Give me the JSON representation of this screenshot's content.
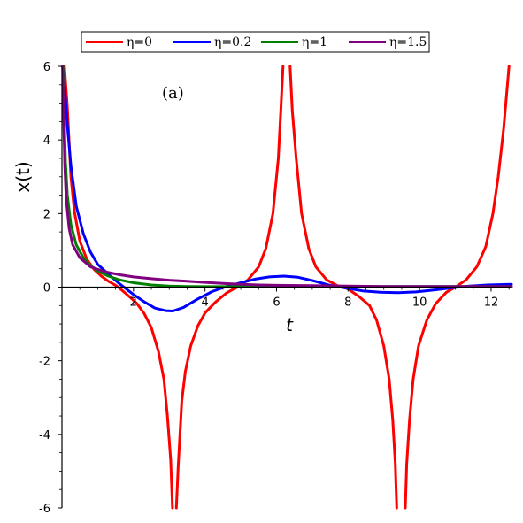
{
  "chart_data": {
    "type": "line",
    "title": "",
    "xlabel": "t",
    "ylabel": "x(t)",
    "xlim": [
      0,
      12.57
    ],
    "ylim": [
      -6,
      6
    ],
    "xticks": [
      2,
      4,
      6,
      8,
      10,
      12
    ],
    "yticks": [
      -6,
      -4,
      -2,
      0,
      2,
      4,
      6
    ],
    "grid": false,
    "legend_position": "top",
    "annotation": "(a)",
    "series": [
      {
        "name": "η=0",
        "color": "#ff0000",
        "segments": [
          [
            [
              0.07,
              6.0
            ],
            [
              0.15,
              4.9
            ],
            [
              0.25,
              3.0
            ],
            [
              0.35,
              2.05
            ],
            [
              0.5,
              1.25
            ],
            [
              0.7,
              0.75
            ],
            [
              0.9,
              0.48
            ],
            [
              1.1,
              0.3
            ],
            [
              1.3,
              0.16
            ],
            [
              1.5,
              0.05
            ],
            [
              1.57,
              0
            ],
            [
              1.7,
              -0.1
            ],
            [
              1.9,
              -0.27
            ],
            [
              2.1,
              -0.45
            ],
            [
              2.3,
              -0.72
            ],
            [
              2.5,
              -1.1
            ],
            [
              2.7,
              -1.75
            ],
            [
              2.85,
              -2.5
            ],
            [
              2.95,
              -3.5
            ],
            [
              3.04,
              -4.7
            ],
            [
              3.09,
              -6.0
            ]
          ],
          [
            [
              3.2,
              -6.0
            ],
            [
              3.25,
              -4.9
            ],
            [
              3.35,
              -3.1
            ],
            [
              3.45,
              -2.3
            ],
            [
              3.6,
              -1.6
            ],
            [
              3.8,
              -1.05
            ],
            [
              4.0,
              -0.7
            ],
            [
              4.3,
              -0.4
            ],
            [
              4.6,
              -0.16
            ],
            [
              4.8,
              -0.05
            ],
            [
              4.91,
              0
            ],
            [
              5.2,
              0.2
            ],
            [
              5.5,
              0.55
            ],
            [
              5.7,
              1.05
            ],
            [
              5.9,
              2.0
            ],
            [
              6.05,
              3.5
            ],
            [
              6.12,
              4.8
            ],
            [
              6.18,
              6.0
            ]
          ],
          [
            [
              6.38,
              6.0
            ],
            [
              6.44,
              4.8
            ],
            [
              6.55,
              3.5
            ],
            [
              6.7,
              2.0
            ],
            [
              6.9,
              1.05
            ],
            [
              7.1,
              0.55
            ],
            [
              7.4,
              0.2
            ],
            [
              7.7,
              0.04
            ],
            [
              7.85,
              0
            ],
            [
              8.0,
              -0.05
            ],
            [
              8.3,
              -0.25
            ],
            [
              8.6,
              -0.5
            ],
            [
              8.8,
              -0.9
            ],
            [
              9.0,
              -1.6
            ],
            [
              9.15,
              -2.5
            ],
            [
              9.25,
              -3.6
            ],
            [
              9.32,
              -4.8
            ],
            [
              9.36,
              -6.0
            ]
          ],
          [
            [
              9.6,
              -6.0
            ],
            [
              9.64,
              -4.8
            ],
            [
              9.72,
              -3.6
            ],
            [
              9.82,
              -2.5
            ],
            [
              9.97,
              -1.6
            ],
            [
              10.2,
              -0.9
            ],
            [
              10.45,
              -0.45
            ],
            [
              10.75,
              -0.14
            ],
            [
              11.0,
              0
            ],
            [
              11.3,
              0.2
            ],
            [
              11.6,
              0.55
            ],
            [
              11.85,
              1.1
            ],
            [
              12.05,
              2.0
            ],
            [
              12.2,
              3.0
            ],
            [
              12.35,
              4.3
            ],
            [
              12.5,
              6.0
            ]
          ]
        ]
      },
      {
        "name": "η=0.2",
        "color": "#0000ff",
        "segments": [
          [
            [
              0.02,
              6.0
            ],
            [
              0.08,
              5.4
            ],
            [
              0.15,
              4.4
            ],
            [
              0.25,
              3.3
            ],
            [
              0.4,
              2.2
            ],
            [
              0.6,
              1.45
            ],
            [
              0.8,
              0.95
            ],
            [
              1.0,
              0.62
            ],
            [
              1.3,
              0.35
            ],
            [
              1.6,
              0.1
            ],
            [
              1.8,
              -0.05
            ],
            [
              2.0,
              -0.2
            ],
            [
              2.3,
              -0.4
            ],
            [
              2.6,
              -0.57
            ],
            [
              2.9,
              -0.64
            ],
            [
              3.1,
              -0.65
            ],
            [
              3.4,
              -0.55
            ],
            [
              3.8,
              -0.32
            ],
            [
              4.2,
              -0.12
            ],
            [
              4.6,
              0.02
            ],
            [
              5.0,
              0.12
            ],
            [
              5.4,
              0.22
            ],
            [
              5.8,
              0.28
            ],
            [
              6.2,
              0.3
            ],
            [
              6.6,
              0.27
            ],
            [
              7.0,
              0.18
            ],
            [
              7.5,
              0.05
            ],
            [
              7.9,
              -0.02
            ],
            [
              8.4,
              -0.1
            ],
            [
              8.9,
              -0.14
            ],
            [
              9.4,
              -0.15
            ],
            [
              9.9,
              -0.13
            ],
            [
              10.4,
              -0.08
            ],
            [
              10.9,
              -0.02
            ],
            [
              11.4,
              0.03
            ],
            [
              11.9,
              0.06
            ],
            [
              12.57,
              0.08
            ]
          ]
        ]
      },
      {
        "name": "η=1",
        "color": "#008000",
        "segments": [
          [
            [
              0.03,
              6.0
            ],
            [
              0.06,
              4.8
            ],
            [
              0.1,
              3.4
            ],
            [
              0.15,
              2.5
            ],
            [
              0.25,
              1.7
            ],
            [
              0.4,
              1.15
            ],
            [
              0.6,
              0.8
            ],
            [
              0.8,
              0.58
            ],
            [
              1.0,
              0.44
            ],
            [
              1.3,
              0.3
            ],
            [
              1.6,
              0.2
            ],
            [
              2.0,
              0.12
            ],
            [
              2.5,
              0.06
            ],
            [
              3.0,
              0.03
            ],
            [
              3.5,
              0.02
            ],
            [
              4.0,
              0.015
            ],
            [
              5.0,
              0.015
            ],
            [
              6.0,
              0.02
            ],
            [
              7.0,
              0.02
            ],
            [
              8.0,
              0.02
            ],
            [
              9.0,
              0.02
            ],
            [
              10.0,
              0.02
            ],
            [
              11.0,
              0.02
            ],
            [
              12.57,
              0.02
            ]
          ]
        ]
      },
      {
        "name": "η=1.5",
        "color": "#800080",
        "segments": [
          [
            [
              0.02,
              6.0
            ],
            [
              0.05,
              4.6
            ],
            [
              0.08,
              3.3
            ],
            [
              0.12,
              2.4
            ],
            [
              0.2,
              1.6
            ],
            [
              0.3,
              1.15
            ],
            [
              0.5,
              0.8
            ],
            [
              0.8,
              0.55
            ],
            [
              1.2,
              0.42
            ],
            [
              1.6,
              0.34
            ],
            [
              2.0,
              0.28
            ],
            [
              2.5,
              0.23
            ],
            [
              3.0,
              0.19
            ],
            [
              3.5,
              0.16
            ],
            [
              4.0,
              0.13
            ],
            [
              4.5,
              0.1
            ],
            [
              5.0,
              0.08
            ],
            [
              5.5,
              0.06
            ],
            [
              6.0,
              0.05
            ],
            [
              7.0,
              0.04
            ],
            [
              8.0,
              0.03
            ],
            [
              9.0,
              0.02
            ],
            [
              10.0,
              0.02
            ],
            [
              11.0,
              0.02
            ],
            [
              12.57,
              0.02
            ]
          ]
        ]
      }
    ]
  }
}
